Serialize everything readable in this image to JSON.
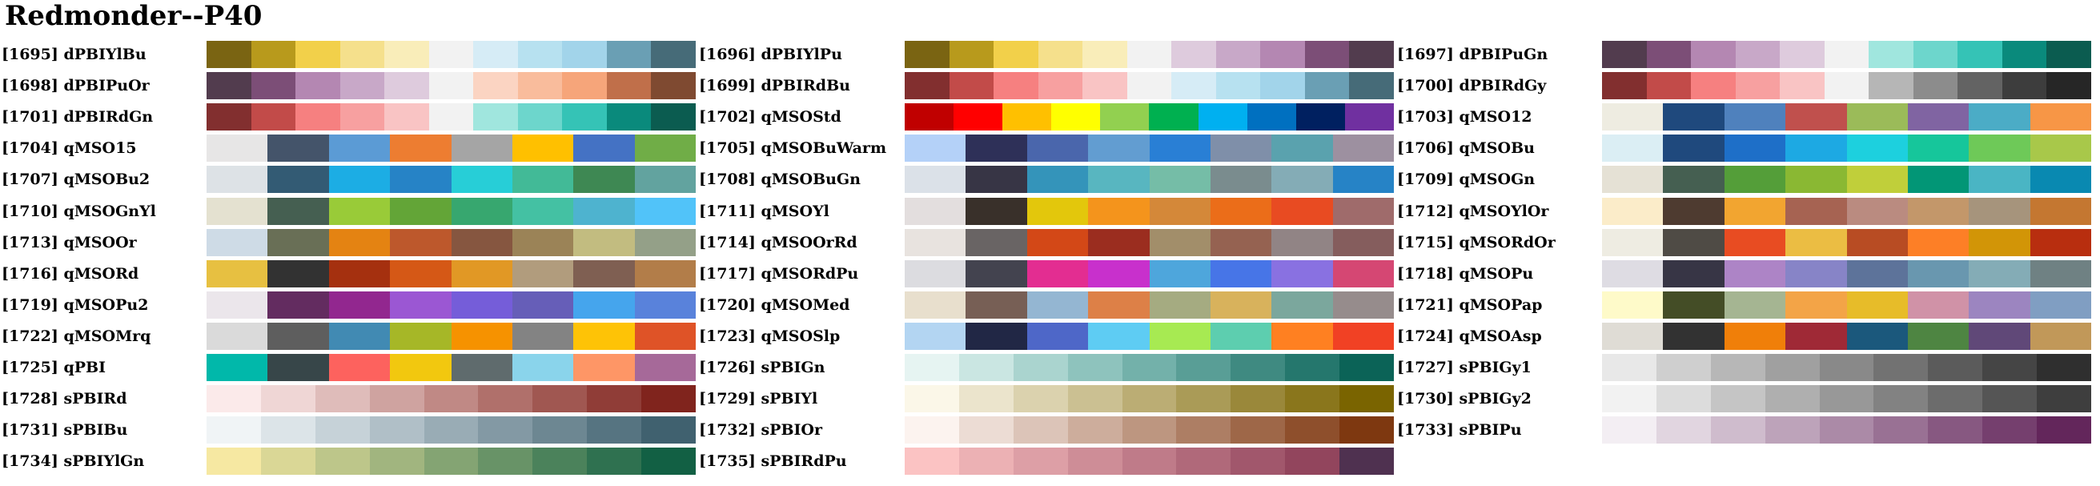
{
  "title": "Redmonder--P40",
  "palettes": [
    {
      "label": "[1695] dPBIYlBu",
      "colors": [
        "#7a6412",
        "#b89a1c",
        "#f2d04a",
        "#f5e08c",
        "#f9edb9",
        "#f2f2f2",
        "#d6ecf6",
        "#b7e1f0",
        "#a2d4ea",
        "#6a9fb4",
        "#466b78"
      ]
    },
    {
      "label": "[1696] dPBIYlPu",
      "colors": [
        "#7a6412",
        "#b89a1c",
        "#f2d04a",
        "#f5e08c",
        "#f9edb9",
        "#f2f2f2",
        "#decbdd",
        "#c8a8c8",
        "#b487b2",
        "#7c4e77",
        "#523c4e"
      ]
    },
    {
      "label": "[1697] dPBIPuGn",
      "colors": [
        "#523c4e",
        "#7c4e77",
        "#b487b2",
        "#c8a8c8",
        "#decbdd",
        "#f2f2f2",
        "#a0e6de",
        "#6dd6cc",
        "#35c3b6",
        "#0a8a7c",
        "#0b5c50"
      ]
    },
    {
      "label": "[1698] dPBIPuOr",
      "colors": [
        "#523c4e",
        "#7c4e77",
        "#b487b2",
        "#c8a8c8",
        "#decbdd",
        "#f2f2f2",
        "#fbd4c2",
        "#f9bc9c",
        "#f6a57a",
        "#c06f4a",
        "#7f4a31"
      ]
    },
    {
      "label": "[1699] dPBIRdBu",
      "colors": [
        "#822f2f",
        "#c24b49",
        "#f68080",
        "#f7a0a0",
        "#f9c4c4",
        "#f2f2f2",
        "#d6ecf6",
        "#b7e1f0",
        "#a2d4ea",
        "#6a9fb4",
        "#466b78"
      ]
    },
    {
      "label": "[1700] dPBIRdGy",
      "colors": [
        "#822f2f",
        "#c24b49",
        "#f68080",
        "#f7a0a0",
        "#f9c4c4",
        "#f2f2f2",
        "#b6b6b6",
        "#8c8c8c",
        "#636363",
        "#3d3d3d",
        "#262626"
      ]
    },
    {
      "label": "[1701] dPBIRdGn",
      "colors": [
        "#822f2f",
        "#c24b49",
        "#f68080",
        "#f7a0a0",
        "#f9c4c4",
        "#f2f2f2",
        "#a0e6de",
        "#6dd6cc",
        "#35c3b6",
        "#0a8a7c",
        "#0b5c50"
      ]
    },
    {
      "label": "[1702] qMSOStd",
      "colors": [
        "#c00000",
        "#ff0000",
        "#ffc000",
        "#ffff00",
        "#92d050",
        "#00b050",
        "#00b0f0",
        "#0070c0",
        "#002060",
        "#7030a0"
      ]
    },
    {
      "label": "[1703] qMSO12",
      "colors": [
        "#eeece1",
        "#1f497d",
        "#4f81bd",
        "#c0504d",
        "#9bbb59",
        "#8064a2",
        "#4bacc6",
        "#f79646"
      ]
    },
    {
      "label": "[1704] qMSO15",
      "colors": [
        "#e7e6e6",
        "#44546a",
        "#5b9bd5",
        "#ed7d31",
        "#a5a5a5",
        "#ffc000",
        "#4472c4",
        "#70ad47"
      ]
    },
    {
      "label": "[1705] qMSOBuWarm",
      "colors": [
        "#b4d1f8",
        "#2e3058",
        "#4a66ac",
        "#629dd1",
        "#297fd5",
        "#7f8fa9",
        "#5aa2ae",
        "#9d90a0"
      ]
    },
    {
      "label": "[1706] qMSOBu",
      "colors": [
        "#dbeef4",
        "#1f497d",
        "#1e6fc8",
        "#1da9e3",
        "#1dd0de",
        "#16c69b",
        "#6ec958",
        "#a8c84a"
      ]
    },
    {
      "label": "[1707] qMSOBu2",
      "colors": [
        "#dde2e6",
        "#335b74",
        "#1cade4",
        "#2683c6",
        "#27ced7",
        "#42ba97",
        "#3e8853",
        "#62a39f"
      ]
    },
    {
      "label": "[1708] qMSOBuGn",
      "colors": [
        "#dbe1e8",
        "#373545",
        "#3494ba",
        "#58b6c0",
        "#75bda7",
        "#7a8c8e",
        "#84acb6",
        "#2683c6"
      ]
    },
    {
      "label": "[1709] qMSOGn",
      "colors": [
        "#e5e1d5",
        "#455f51",
        "#549e39",
        "#8ab833",
        "#c0cf3a",
        "#029676",
        "#4ab5c4",
        "#0989b1"
      ]
    },
    {
      "label": "[1710] qMSOGnYl",
      "colors": [
        "#e4e1d0",
        "#455f51",
        "#99cb38",
        "#63a537",
        "#37a76f",
        "#44c1a3",
        "#4eb3cf",
        "#51c3f9"
      ]
    },
    {
      "label": "[1711] qMSOYl",
      "colors": [
        "#e3dede",
        "#39302a",
        "#e3c70c",
        "#f4941c",
        "#d48839",
        "#eb6d19",
        "#e84b22",
        "#9f6b6b"
      ]
    },
    {
      "label": "[1712] qMSOYlOr",
      "colors": [
        "#fbecc9",
        "#4e3b30",
        "#f2a530",
        "#a66352",
        "#ba8b80",
        "#c3976a",
        "#a6947c",
        "#c47731"
      ]
    },
    {
      "label": "[1713] qMSOOr",
      "colors": [
        "#cedbe6",
        "#696f56",
        "#e48312",
        "#bd582c",
        "#865640",
        "#9b8357",
        "#c2bc80",
        "#94a088"
      ]
    },
    {
      "label": "[1714] qMSOOrRd",
      "colors": [
        "#e8e3df",
        "#696464",
        "#d34817",
        "#9b2d1f",
        "#a28e6a",
        "#956251",
        "#918485",
        "#855d5d"
      ]
    },
    {
      "label": "[1715] qMSORdOr",
      "colors": [
        "#eeece2",
        "#4f4b45",
        "#e84c22",
        "#ebbd43",
        "#b84c23",
        "#fd7f26",
        "#d29507",
        "#b82e0f"
      ]
    },
    {
      "label": "[1716] qMSORd",
      "colors": [
        "#e7c041",
        "#323232",
        "#a5300f",
        "#d55816",
        "#e19825",
        "#b19c7d",
        "#7f5f52",
        "#b27d49"
      ]
    },
    {
      "label": "[1717] qMSORdPu",
      "colors": [
        "#dcdce0",
        "#43434f",
        "#e32d91",
        "#c830cc",
        "#4ea6dc",
        "#4775e7",
        "#8971e1",
        "#d54773"
      ]
    },
    {
      "label": "[1718] qMSOPu",
      "colors": [
        "#dedce3",
        "#373545",
        "#ad84c6",
        "#8784c7",
        "#5d739a",
        "#6997af",
        "#84acb6",
        "#6f8183"
      ]
    },
    {
      "label": "[1719] qMSOPu2",
      "colors": [
        "#ebe6eb",
        "#632c60",
        "#92278f",
        "#9b57d3",
        "#755dd9",
        "#665eb8",
        "#45a5ed",
        "#5982db"
      ]
    },
    {
      "label": "[1720] qMSOMed",
      "colors": [
        "#e8dfcd",
        "#775f55",
        "#94b6d2",
        "#dd8047",
        "#a5ab81",
        "#d8b25c",
        "#7ba79d",
        "#968c8c"
      ]
    },
    {
      "label": "[1721] qMSOPap",
      "colors": [
        "#fefac9",
        "#444d26",
        "#a5b592",
        "#f3a447",
        "#e7bc29",
        "#d092a7",
        "#9c85c0",
        "#809ec2"
      ]
    },
    {
      "label": "[1722] qMSOMrq",
      "colors": [
        "#dadada",
        "#5e5e5e",
        "#418ab3",
        "#a6b727",
        "#f69200",
        "#838383",
        "#fec306",
        "#df5327"
      ]
    },
    {
      "label": "[1723] qMSOSlp",
      "colors": [
        "#b3d5f2",
        "#212745",
        "#4e67c8",
        "#5eccf3",
        "#a7ea52",
        "#5dceaf",
        "#ff8021",
        "#f14124"
      ]
    },
    {
      "label": "[1724] qMSOAsp",
      "colors": [
        "#dfdcd5",
        "#323232",
        "#f07f09",
        "#9f2936",
        "#1b587c",
        "#4e8542",
        "#604878",
        "#c19859"
      ]
    },
    {
      "label": "[1725] qPBI",
      "colors": [
        "#01b8aa",
        "#374649",
        "#fd625e",
        "#f2c80f",
        "#5f6b6d",
        "#8ad4eb",
        "#fe9666",
        "#a66999"
      ]
    },
    {
      "label": "[1726] sPBIGn",
      "colors": [
        "#e6f4f2",
        "#cae6e2",
        "#aad4cf",
        "#8ec3bd",
        "#73b1aa",
        "#599e96",
        "#3f8a81",
        "#25776d",
        "#0b6357"
      ]
    },
    {
      "label": "[1727] sPBIGy1",
      "colors": [
        "#e8e8e8",
        "#cfcfcf",
        "#b7b7b7",
        "#a0a0a0",
        "#898989",
        "#727272",
        "#5b5b5b",
        "#454545",
        "#2f2f2f"
      ]
    },
    {
      "label": "[1728] sPBIRd",
      "colors": [
        "#fbeaea",
        "#efd6d5",
        "#dfbcba",
        "#cfa3a0",
        "#c08985",
        "#b0706b",
        "#a05751",
        "#903d37",
        "#80241d"
      ]
    },
    {
      "label": "[1729] sPBIYl",
      "colors": [
        "#fbf7e8",
        "#ebe4cc",
        "#dbd2ae",
        "#cbc092",
        "#bbad74",
        "#aa9b57",
        "#9a883a",
        "#8a761c",
        "#7a6400"
      ]
    },
    {
      "label": "[1730] sPBIGy2",
      "colors": [
        "#f2f2f2",
        "#dcdcdc",
        "#c5c5c5",
        "#afafaf",
        "#989898",
        "#828282",
        "#6c6c6c",
        "#555555",
        "#3e3e3e"
      ]
    },
    {
      "label": "[1731] sPBIBu",
      "colors": [
        "#f0f4f6",
        "#dce4e8",
        "#c6d2d8",
        "#b0bfc7",
        "#99acb5",
        "#8399a4",
        "#6d8792",
        "#567481",
        "#40616f"
      ]
    },
    {
      "label": "[1732] sPBIOr",
      "colors": [
        "#fcf3ef",
        "#ecdcd4",
        "#dcc4b8",
        "#cdad9c",
        "#bd9680",
        "#ad7e64",
        "#9e6748",
        "#8e4f2c",
        "#7e3810"
      ]
    },
    {
      "label": "[1733] sPBIPu",
      "colors": [
        "#f3eef3",
        "#e1d5e0",
        "#cfbccd",
        "#bda3ba",
        "#ab8aa7",
        "#997194",
        "#875881",
        "#753f6e",
        "#63265b"
      ]
    },
    {
      "label": "[1734] sPBIYlGn",
      "colors": [
        "#f6e8a2",
        "#dad796",
        "#bdc68a",
        "#a1b57f",
        "#84a473",
        "#689367",
        "#4b825b",
        "#2f7150",
        "#126044"
      ]
    },
    {
      "label": "[1735] sPBIRdPu",
      "colors": [
        "#fbc3c3",
        "#ecb1b4",
        "#dd9fa6",
        "#ce8d97",
        "#bf7b89",
        "#b0697a",
        "#a1576c",
        "#92455d",
        "#4f3150"
      ]
    }
  ]
}
